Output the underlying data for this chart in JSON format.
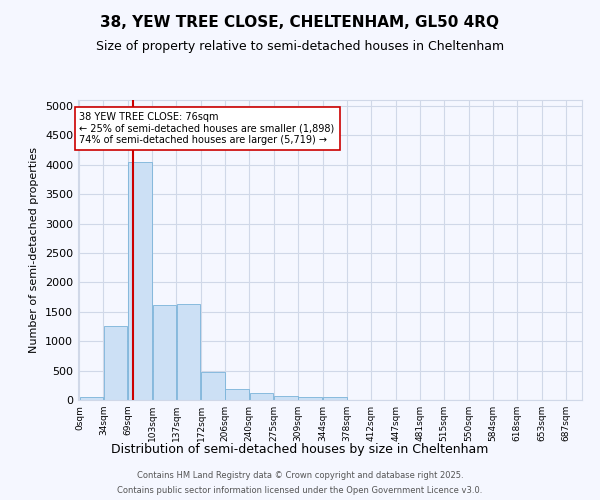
{
  "title": "38, YEW TREE CLOSE, CHELTENHAM, GL50 4RQ",
  "subtitle": "Size of property relative to semi-detached houses in Cheltenham",
  "xlabel": "Distribution of semi-detached houses by size in Cheltenham",
  "ylabel": "Number of semi-detached properties",
  "footer1": "Contains HM Land Registry data © Crown copyright and database right 2025.",
  "footer2": "Contains public sector information licensed under the Open Government Licence v3.0.",
  "annotation_title": "38 YEW TREE CLOSE: 76sqm",
  "annotation_line2": "← 25% of semi-detached houses are smaller (1,898)",
  "annotation_line3": "74% of semi-detached houses are larger (5,719) →",
  "property_size": 76,
  "bar_color": "#cce0f5",
  "bar_edge_color": "#7ab3d9",
  "vline_color": "#cc0000",
  "grid_color": "#d0d8e8",
  "bg_color": "#f5f7ff",
  "categories": [
    "0sqm",
    "34sqm",
    "69sqm",
    "103sqm",
    "137sqm",
    "172sqm",
    "206sqm",
    "240sqm",
    "275sqm",
    "309sqm",
    "344sqm",
    "378sqm",
    "412sqm",
    "447sqm",
    "481sqm",
    "515sqm",
    "550sqm",
    "584sqm",
    "618sqm",
    "653sqm",
    "687sqm"
  ],
  "bin_edges": [
    0,
    34,
    69,
    103,
    137,
    172,
    206,
    240,
    275,
    309,
    344,
    378,
    412,
    447,
    481,
    515,
    550,
    584,
    618,
    653,
    687
  ],
  "values": [
    50,
    1250,
    4050,
    1620,
    1630,
    470,
    185,
    120,
    75,
    55,
    45,
    0,
    0,
    0,
    0,
    0,
    0,
    0,
    0,
    0,
    0
  ],
  "ylim": [
    0,
    5100
  ],
  "yticks": [
    0,
    500,
    1000,
    1500,
    2000,
    2500,
    3000,
    3500,
    4000,
    4500,
    5000
  ]
}
